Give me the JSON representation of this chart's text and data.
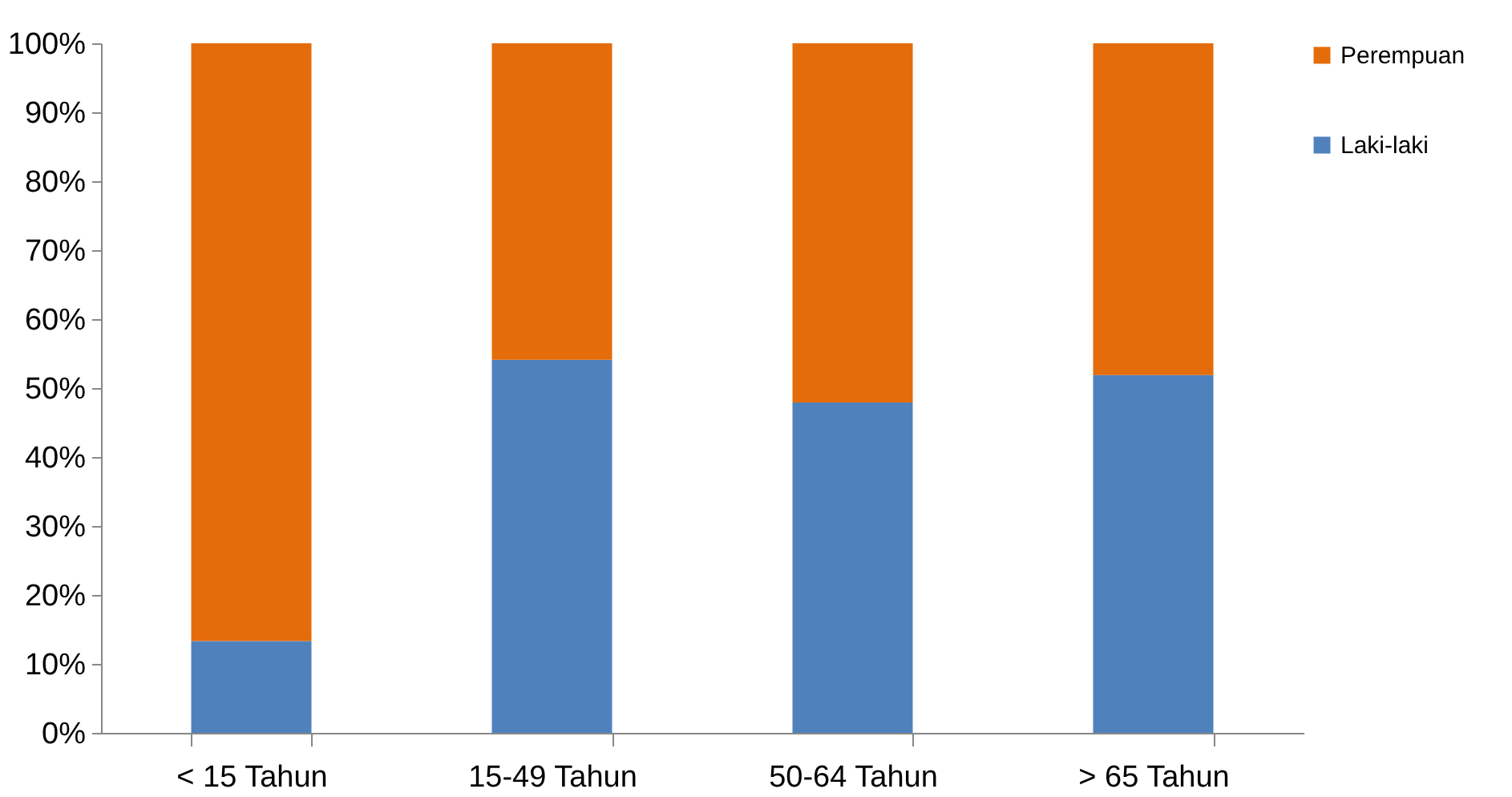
{
  "chart_data": {
    "type": "bar",
    "stacked": true,
    "categories": [
      "< 15 Tahun",
      "15-49 Tahun",
      "50-64 Tahun",
      "> 65 Tahun"
    ],
    "series": [
      {
        "name": "Laki-laki",
        "color": "#4f81bd",
        "values": [
          13.3,
          54.1,
          47.9,
          51.9
        ]
      },
      {
        "name": "Perempuan",
        "color": "#e46c0a",
        "values": [
          86.7,
          45.9,
          52.1,
          48.1
        ]
      }
    ],
    "ylim": [
      0,
      100
    ],
    "yticks": [
      {
        "value": 0,
        "label": "0%"
      },
      {
        "value": 10,
        "label": "10%"
      },
      {
        "value": 20,
        "label": "20%"
      },
      {
        "value": 30,
        "label": "30%"
      },
      {
        "value": 40,
        "label": "40%"
      },
      {
        "value": 50,
        "label": "50%"
      },
      {
        "value": 60,
        "label": "60%"
      },
      {
        "value": 70,
        "label": "70%"
      },
      {
        "value": 80,
        "label": "80%"
      },
      {
        "value": 90,
        "label": "90%"
      },
      {
        "value": 100,
        "label": "100%"
      }
    ],
    "grid": false,
    "legend": "right"
  }
}
